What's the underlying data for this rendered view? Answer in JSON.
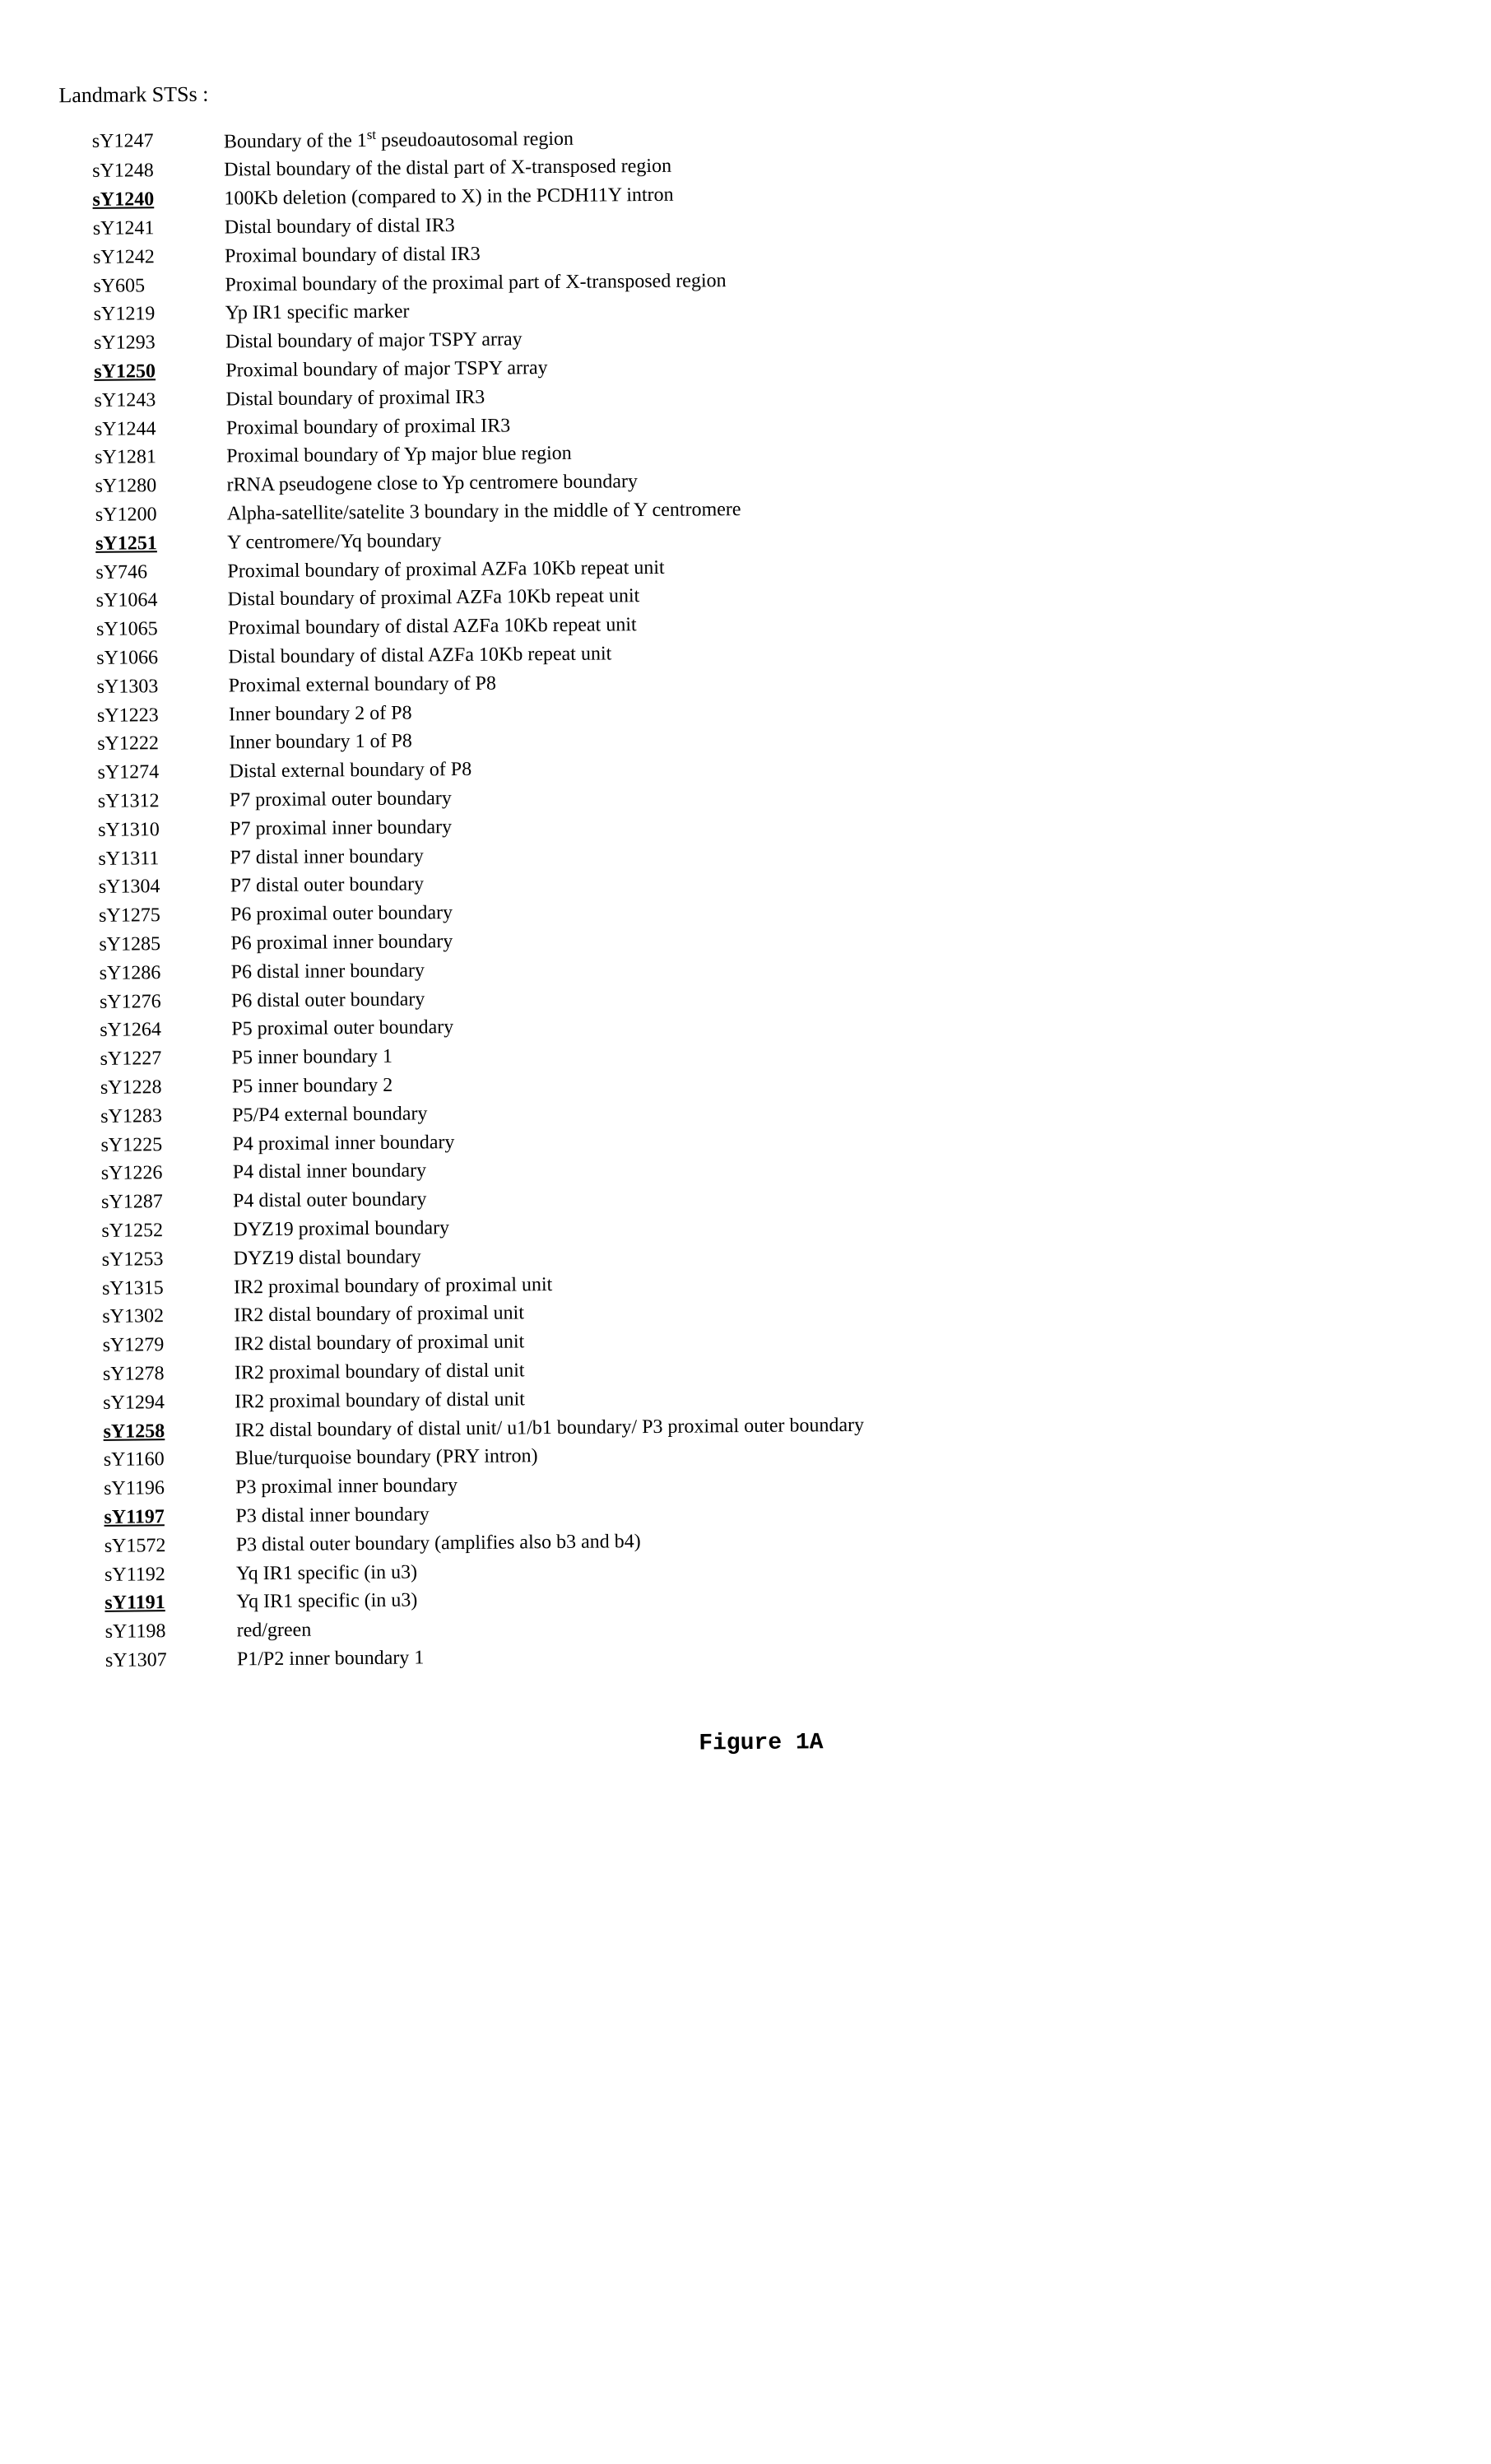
{
  "title": "Landmark STSs :",
  "figure_label": "Figure 1A",
  "entries": [
    {
      "sts": "sY1247",
      "underlined": false,
      "desc": "Boundary of the 1<sup>st</sup> pseudoautosomal region"
    },
    {
      "sts": "sY1248",
      "underlined": false,
      "desc": "Distal boundary of the distal part of X-transposed region"
    },
    {
      "sts": "sY1240",
      "underlined": true,
      "desc": "100Kb deletion (compared to X) in the PCDH11Y intron"
    },
    {
      "sts": "sY1241",
      "underlined": false,
      "desc": "Distal boundary of distal IR3"
    },
    {
      "sts": "sY1242",
      "underlined": false,
      "desc": "Proximal boundary of distal IR3"
    },
    {
      "sts": "sY605",
      "underlined": false,
      "desc": "Proximal boundary of the proximal part of X-transposed region"
    },
    {
      "sts": "sY1219",
      "underlined": false,
      "desc": "Yp IR1 specific marker"
    },
    {
      "sts": "sY1293",
      "underlined": false,
      "desc": "Distal boundary of major TSPY array"
    },
    {
      "sts": "sY1250",
      "underlined": true,
      "desc": "Proximal boundary of major TSPY array"
    },
    {
      "sts": "sY1243",
      "underlined": false,
      "desc": "Distal boundary of proximal IR3"
    },
    {
      "sts": "sY1244",
      "underlined": false,
      "desc": "Proximal boundary of proximal IR3"
    },
    {
      "sts": "sY1281",
      "underlined": false,
      "desc": "Proximal boundary of Yp major blue region"
    },
    {
      "sts": "sY1280",
      "underlined": false,
      "desc": "rRNA pseudogene close to Yp centromere boundary"
    },
    {
      "sts": "sY1200",
      "underlined": false,
      "desc": "Alpha-satellite/satelite 3 boundary in the middle of Y centromere"
    },
    {
      "sts": "sY1251",
      "underlined": true,
      "desc": "Y centromere/Yq boundary"
    },
    {
      "sts": "sY746",
      "underlined": false,
      "desc": "Proximal boundary of proximal AZFa 10Kb repeat unit"
    },
    {
      "sts": "sY1064",
      "underlined": false,
      "desc": "Distal boundary of proximal AZFa 10Kb repeat unit"
    },
    {
      "sts": "sY1065",
      "underlined": false,
      "desc": "Proximal boundary of distal AZFa 10Kb repeat unit"
    },
    {
      "sts": "sY1066",
      "underlined": false,
      "desc": "Distal boundary of distal AZFa 10Kb repeat unit"
    },
    {
      "sts": "sY1303",
      "underlined": false,
      "desc": "Proximal external boundary of P8"
    },
    {
      "sts": "sY1223",
      "underlined": false,
      "desc": "Inner boundary 2 of P8"
    },
    {
      "sts": "sY1222",
      "underlined": false,
      "desc": "Inner boundary 1 of P8"
    },
    {
      "sts": "sY1274",
      "underlined": false,
      "desc": "Distal external boundary of P8"
    },
    {
      "sts": "sY1312",
      "underlined": false,
      "desc": "P7 proximal outer boundary"
    },
    {
      "sts": "sY1310",
      "underlined": false,
      "desc": "P7 proximal inner boundary"
    },
    {
      "sts": "sY1311",
      "underlined": false,
      "desc": "P7 distal inner boundary"
    },
    {
      "sts": "sY1304",
      "underlined": false,
      "desc": "P7 distal outer boundary"
    },
    {
      "sts": "sY1275",
      "underlined": false,
      "desc": "P6 proximal outer boundary"
    },
    {
      "sts": "sY1285",
      "underlined": false,
      "desc": "P6 proximal inner boundary"
    },
    {
      "sts": "sY1286",
      "underlined": false,
      "desc": "P6 distal inner boundary"
    },
    {
      "sts": "sY1276",
      "underlined": false,
      "desc": "P6 distal outer boundary"
    },
    {
      "sts": "sY1264",
      "underlined": false,
      "desc": "P5 proximal outer boundary"
    },
    {
      "sts": "sY1227",
      "underlined": false,
      "desc": "P5 inner boundary 1"
    },
    {
      "sts": "sY1228",
      "underlined": false,
      "desc": "P5 inner boundary 2"
    },
    {
      "sts": "sY1283",
      "underlined": false,
      "desc": "P5/P4 external boundary"
    },
    {
      "sts": "sY1225",
      "underlined": false,
      "desc": "P4 proximal inner boundary"
    },
    {
      "sts": "sY1226",
      "underlined": false,
      "desc": "P4 distal inner boundary"
    },
    {
      "sts": "sY1287",
      "underlined": false,
      "desc": "P4 distal outer boundary"
    },
    {
      "sts": "sY1252",
      "underlined": false,
      "desc": "DYZ19 proximal boundary"
    },
    {
      "sts": "sY1253",
      "underlined": false,
      "desc": "DYZ19 distal boundary"
    },
    {
      "sts": "sY1315",
      "underlined": false,
      "desc": "IR2 proximal boundary of proximal unit"
    },
    {
      "sts": "sY1302",
      "underlined": false,
      "desc": "IR2 distal boundary of proximal unit"
    },
    {
      "sts": "sY1279",
      "underlined": false,
      "desc": "IR2 distal boundary of proximal unit"
    },
    {
      "sts": "sY1278",
      "underlined": false,
      "desc": "IR2 proximal boundary of distal unit"
    },
    {
      "sts": "sY1294",
      "underlined": false,
      "desc": "IR2 proximal boundary of distal unit"
    },
    {
      "sts": "sY1258",
      "underlined": true,
      "desc": "IR2 distal boundary of distal unit/ u1/b1 boundary/ P3 proximal outer boundary"
    },
    {
      "sts": "sY1160",
      "underlined": false,
      "desc": "Blue/turquoise boundary (PRY intron)"
    },
    {
      "sts": "sY1196",
      "underlined": false,
      "desc": "P3 proximal inner boundary"
    },
    {
      "sts": "sY1197",
      "underlined": true,
      "desc": "P3 distal inner boundary"
    },
    {
      "sts": "sY1572",
      "underlined": false,
      "desc": "P3 distal outer boundary (amplifies also b3 and b4)"
    },
    {
      "sts": "sY1192",
      "underlined": false,
      "desc": "Yq IR1 specific (in u3)"
    },
    {
      "sts": "sY1191",
      "underlined": true,
      "desc": "Yq IR1 specific (in u3)"
    },
    {
      "sts": "sY1198",
      "underlined": false,
      "desc": "red/green"
    },
    {
      "sts": "sY1307",
      "underlined": false,
      "desc": "P1/P2 inner boundary 1"
    }
  ]
}
